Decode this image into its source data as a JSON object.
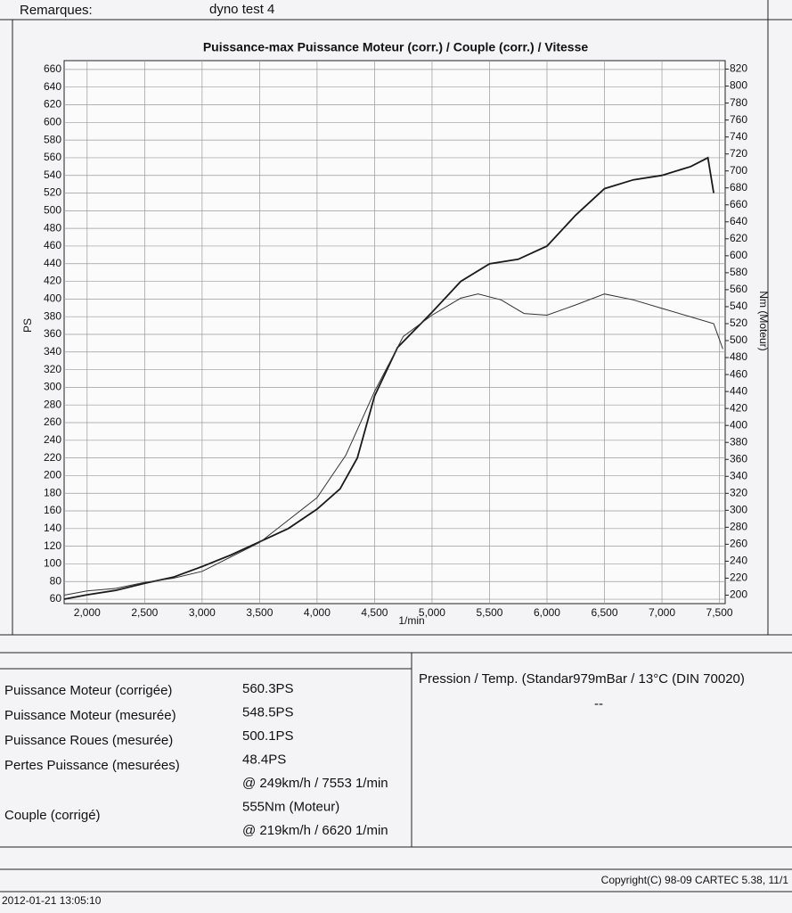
{
  "header": {
    "label": "Remarques:",
    "value": "dyno test 4"
  },
  "chart_data": {
    "type": "line",
    "title": "Puissance-max Puissance Moteur (corr.) / Couple (corr.) / Vitesse",
    "x_label": "1/min",
    "y_label": "PS",
    "y2_label": "Nm (Moteur)",
    "xlim": [
      1800,
      7550
    ],
    "xticks": [
      {
        "value": 2000,
        "label": "2,000"
      },
      {
        "value": 2500,
        "label": "2,500"
      },
      {
        "value": 3000,
        "label": "3,000"
      },
      {
        "value": 3500,
        "label": "3,500"
      },
      {
        "value": 4000,
        "label": "4,000"
      },
      {
        "value": 4500,
        "label": "4,500"
      },
      {
        "value": 5000,
        "label": "5,000"
      },
      {
        "value": 5500,
        "label": "5,500"
      },
      {
        "value": 6000,
        "label": "6,000"
      },
      {
        "value": 6500,
        "label": "6,500"
      },
      {
        "value": 7000,
        "label": "7,000"
      },
      {
        "value": 7500,
        "label": "7,500"
      }
    ],
    "ylim": [
      55,
      670
    ],
    "yticks": [
      60,
      80,
      100,
      120,
      140,
      160,
      180,
      200,
      220,
      240,
      260,
      280,
      300,
      320,
      340,
      360,
      380,
      400,
      420,
      440,
      460,
      480,
      500,
      520,
      540,
      560,
      580,
      600,
      620,
      640,
      660
    ],
    "y2lim": [
      190,
      830
    ],
    "y2ticks": [
      200,
      220,
      240,
      260,
      280,
      300,
      320,
      340,
      360,
      380,
      400,
      420,
      440,
      460,
      480,
      500,
      520,
      540,
      560,
      580,
      600,
      620,
      640,
      660,
      680,
      700,
      720,
      740,
      760,
      780,
      800,
      820
    ],
    "grid": true,
    "series": [
      {
        "color": "#1a1a1a",
        "width": 1.8,
        "x": [
          1800,
          2000,
          2250,
          2500,
          2750,
          3000,
          3250,
          3500,
          3750,
          4000,
          4200,
          4350,
          4500,
          4700,
          5000,
          5250,
          5500,
          5750,
          6000,
          6250,
          6500,
          6750,
          7000,
          7250,
          7400,
          7450
        ],
        "values": [
          60,
          65,
          70,
          78,
          85,
          97,
          110,
          125,
          140,
          162,
          185,
          220,
          290,
          345,
          385,
          420,
          440,
          445,
          460,
          495,
          525,
          535,
          540,
          550,
          560,
          520
        ]
      },
      {
        "color": "#333333",
        "width": 1,
        "axis": "y2",
        "x": [
          1800,
          2000,
          2250,
          2500,
          2750,
          3000,
          3500,
          4000,
          4250,
          4500,
          4750,
          5000,
          5250,
          5400,
          5600,
          5800,
          6000,
          6250,
          6500,
          6750,
          7000,
          7250,
          7450,
          7530
        ],
        "values": [
          200,
          205,
          208,
          215,
          220,
          228,
          262,
          315,
          365,
          440,
          505,
          530,
          550,
          555,
          548,
          532,
          530,
          542,
          555,
          548,
          538,
          528,
          520,
          490
        ]
      }
    ]
  },
  "results": {
    "labels": [
      "Puissance Moteur (corrigée)",
      "Puissance Moteur (mesurée)",
      "Puissance Roues (mesurée)",
      "Pertes Puissance (mesurées)",
      "Couple (corrigé)"
    ],
    "values": [
      "560.3PS",
      "548.5PS",
      "500.1PS",
      "48.4PS",
      "@ 249km/h / 7553 1/min",
      "555Nm (Moteur)",
      "@ 219km/h / 6620 1/min"
    ],
    "conditions": "Pression / Temp. (Standar979mBar / 13°C   (DIN 70020)",
    "conditions_value": "--"
  },
  "footer": {
    "copyright": "Copyright(C) 98-09 CARTEC 5.38, 11/1",
    "date": "2012-01-21 13:05:10"
  }
}
